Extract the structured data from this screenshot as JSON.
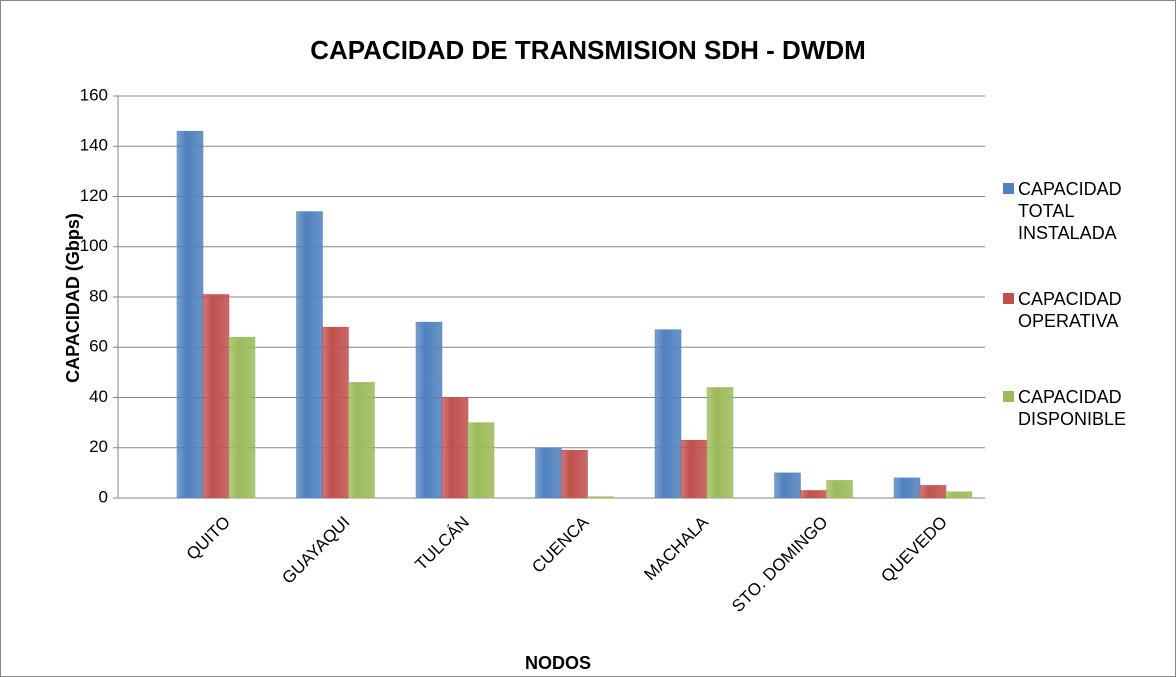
{
  "chart_data": {
    "type": "bar",
    "title": "CAPACIDAD DE TRANSMISION SDH - DWDM",
    "x_label": "NODOS",
    "y_label": "CAPACIDAD (Gbps)",
    "categories": [
      "QUITO",
      "GUAYAQUI",
      "TULCÁN",
      "CUENCA",
      "MACHALA",
      "STO. DOMINGO",
      "QUEVEDO"
    ],
    "series": [
      {
        "name": "CAPACIDAD TOTAL INSTALADA",
        "color": "#4f81bd",
        "values": [
          146,
          114,
          70,
          20,
          67,
          10,
          8
        ]
      },
      {
        "name": "CAPACIDAD OPERATIVA",
        "color": "#c0504d",
        "values": [
          81,
          68,
          40,
          19,
          23,
          3,
          5
        ]
      },
      {
        "name": "CAPACIDAD DISPONIBLE",
        "color": "#9bbb59",
        "values": [
          64,
          46,
          30,
          0.5,
          44,
          7,
          2.5
        ]
      }
    ],
    "ylim": [
      0,
      160
    ],
    "yticks": [
      0,
      20,
      40,
      60,
      80,
      100,
      120,
      140,
      160
    ],
    "grid": true,
    "legend": "right"
  }
}
